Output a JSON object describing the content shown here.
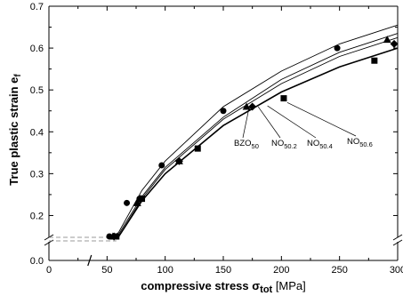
{
  "chart_data": {
    "type": "scatter",
    "title": "",
    "xlabel": {
      "main": "compressive stress ",
      "symbol": "σ",
      "subscript": "tot",
      "unit": " [MPa]"
    },
    "ylabel": {
      "main": "True plastic strain  e",
      "subscript": "f"
    },
    "xlim": [
      0,
      300
    ],
    "ylim": [
      0,
      0.7
    ],
    "y_axis_break": [
      0.0,
      0.15
    ],
    "x_axis_break_at": 35,
    "x_ticks": [
      "0",
      "50",
      "100",
      "150",
      "200",
      "250",
      "300"
    ],
    "y_ticks": [
      "0.0",
      "0.2",
      "0.3",
      "0.4",
      "0.5",
      "0.6",
      "0.7"
    ],
    "grid": false,
    "series": [
      {
        "name_base": "BZO",
        "name_sub": "50",
        "marker": "circle",
        "x": [
          52,
          67,
          78,
          97,
          150,
          248
        ],
        "y": [
          0.15,
          0.23,
          0.24,
          0.32,
          0.45,
          0.6
        ]
      },
      {
        "name_base": "NO",
        "name_sub": "50.2",
        "marker": "square",
        "x": [
          58,
          80,
          128,
          202,
          280
        ],
        "y": [
          0.15,
          0.24,
          0.36,
          0.48,
          0.57
        ]
      },
      {
        "name_base": "NO",
        "name_sub": "50.4",
        "marker": "diamond",
        "x": [
          56,
          79,
          112,
          175,
          297
        ],
        "y": [
          0.15,
          0.24,
          0.33,
          0.46,
          0.61
        ]
      },
      {
        "name_base": "NO",
        "name_sub": "50.6",
        "marker": "triangle",
        "x": [
          55,
          76,
          112,
          170,
          291
        ],
        "y": [
          0.15,
          0.23,
          0.33,
          0.46,
          0.62
        ]
      }
    ],
    "fit_curves": [
      {
        "x": [
          55,
          60,
          80,
          100,
          150,
          200,
          250,
          300
        ],
        "y": [
          0.13,
          0.16,
          0.26,
          0.33,
          0.46,
          0.545,
          0.61,
          0.655
        ]
      },
      {
        "x": [
          55,
          60,
          80,
          100,
          150,
          200,
          250,
          300
        ],
        "y": [
          0.13,
          0.155,
          0.245,
          0.315,
          0.435,
          0.525,
          0.59,
          0.635
        ]
      },
      {
        "x": [
          55,
          60,
          80,
          100,
          150,
          200,
          250,
          300
        ],
        "y": [
          0.13,
          0.15,
          0.24,
          0.31,
          0.43,
          0.515,
          0.58,
          0.625
        ]
      },
      {
        "x": [
          55,
          60,
          80,
          100,
          150,
          200,
          250,
          300
        ],
        "y": [
          0.13,
          0.148,
          0.235,
          0.3,
          0.415,
          0.495,
          0.555,
          0.6
        ]
      }
    ],
    "annotations": [
      {
        "series": 0,
        "base": "BZO",
        "sub": "50",
        "pointer": [
          172,
          0.455
        ]
      },
      {
        "series": 1,
        "base": "NO",
        "sub": "50.2",
        "pointer": [
          180,
          0.46
        ]
      },
      {
        "series": 2,
        "base": "NO",
        "sub": "50.4",
        "pointer": [
          188,
          0.462
        ]
      },
      {
        "series": 3,
        "base": "NO",
        "sub": "50.6",
        "pointer": [
          205,
          0.47
        ]
      }
    ]
  }
}
